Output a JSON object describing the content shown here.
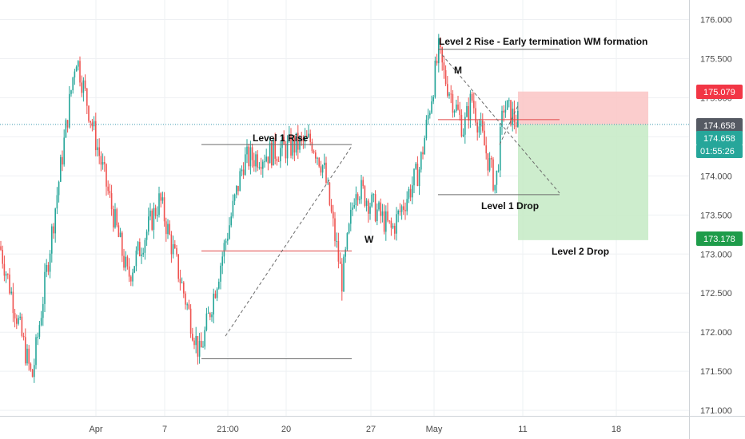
{
  "colors": {
    "up": "#26a69a",
    "down": "#ef5350",
    "grid": "#eef0f3",
    "axis_text": "#4a4a4a",
    "current_line": "#3d9ab0",
    "stop_zone": "#fbc8c8",
    "profit_zone": "#c8ebc8",
    "stop_tag": "#f23645",
    "target_tag": "#1e9c4a",
    "price_tag": "#555a63",
    "teal_tag": "#26a69a",
    "level_line": "#6b6b6b",
    "red_level": "#e04848",
    "dashed": "#6b6b6b"
  },
  "chart_data": {
    "type": "candlestick",
    "y_axis": {
      "range": [
        170.93,
        176.25
      ],
      "ticks": [
        "176.000",
        "175.500",
        "175.000",
        "174.500",
        "174.000",
        "173.500",
        "173.000",
        "172.500",
        "172.000",
        "171.500",
        "171.000"
      ]
    },
    "x_axis": {
      "ticks": [
        "Apr",
        "7",
        "21:00",
        "20",
        "27",
        "May",
        "11",
        "18"
      ]
    },
    "current_price": 174.658,
    "tags": {
      "stop": "175.079",
      "price": "174.658",
      "price_teal": "174.658",
      "countdown": "01:55:26",
      "target": "173.178"
    },
    "annotations": [
      {
        "id": "level-2-rise",
        "text": "Level 2 Rise - Early termination WM formation"
      },
      {
        "id": "level-1-rise",
        "text": "Level 1 Rise"
      },
      {
        "id": "level-1-drop",
        "text": "Level 1 Drop"
      },
      {
        "id": "level-2-drop",
        "text": "Level 2 Drop"
      },
      {
        "id": "m-label",
        "text": "M"
      },
      {
        "id": "w-label",
        "text": "W"
      }
    ],
    "levels": {
      "level_2_rise": 175.62,
      "level_1_rise": 174.4,
      "red_w": 173.04,
      "low_base": 171.66,
      "red_m": 174.72,
      "level_1_drop": 173.76,
      "entry": 174.658,
      "stop": 175.079,
      "target": 173.178
    },
    "anchors": [
      {
        "name": "pre-apr-start",
        "close": 173.1
      },
      {
        "name": "early-low",
        "close": 171.4
      },
      {
        "name": "apr-high",
        "close": 175.55
      },
      {
        "name": "mid-apr-low",
        "close": 172.7
      },
      {
        "name": "bounce",
        "close": 173.7
      },
      {
        "name": "base-low",
        "close": 171.7
      },
      {
        "name": "rally",
        "close": 174.2
      },
      {
        "name": "level-1-high",
        "close": 174.45
      },
      {
        "name": "pre-drop",
        "close": 174.1
      },
      {
        "name": "w-low",
        "close": 172.65
      },
      {
        "name": "recover",
        "close": 173.9
      },
      {
        "name": "w-right",
        "close": 173.3
      },
      {
        "name": "late-apr",
        "close": 174.1
      },
      {
        "name": "may-high",
        "close": 175.6
      },
      {
        "name": "m-hump",
        "close": 175.3
      },
      {
        "name": "mid-dip",
        "close": 174.6
      },
      {
        "name": "m-right",
        "close": 175.0
      },
      {
        "name": "may-low",
        "close": 173.85
      },
      {
        "name": "bounce-2",
        "close": 174.9
      },
      {
        "name": "current",
        "close": 174.658
      }
    ]
  }
}
